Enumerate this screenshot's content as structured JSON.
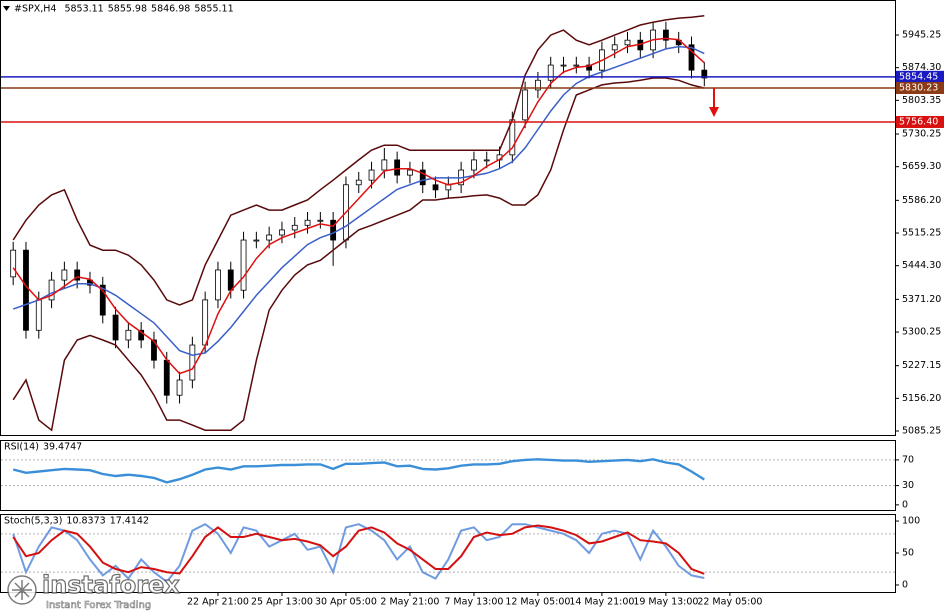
{
  "chart_data": [
    {
      "type": "candlestick",
      "title": "#SPX,H4",
      "header_values": [
        5853.11,
        5855.98,
        5846.98,
        5855.11
      ],
      "xlim": [
        -1.03,
        68.9
      ],
      "ylim": [
        5076.6,
        6021.3
      ],
      "yticks": [
        5945.25,
        {
          "value": 5874.3,
          "label": "5874.30"
        },
        5803.35,
        5730.25,
        {
          "value": 5659.3,
          "label": "5659.30"
        },
        {
          "value": 5586.2,
          "label": "5586.20"
        },
        5515.25,
        {
          "value": 5444.3,
          "label": "5444.30"
        },
        {
          "value": 5371.2,
          "label": "5371.20"
        },
        5300.25,
        5227.15,
        {
          "value": 5156.2,
          "label": "5156.20"
        },
        5085.25
      ],
      "open": [
        5420,
        5478,
        5304,
        5370,
        5413,
        5435,
        5413,
        5402,
        5337,
        5283,
        5304,
        5283,
        5239,
        5163,
        5196,
        5272,
        5370,
        5435,
        5391,
        5500,
        5500,
        5511,
        5522,
        5532,
        5543,
        5543,
        5500,
        5620,
        5630,
        5652,
        5674,
        5641,
        5652,
        5620,
        5609,
        5620,
        5652,
        5674,
        5674,
        5685,
        5761,
        5826,
        5847,
        5880,
        5880,
        5880,
        5869,
        5913,
        5924,
        5934,
        5913,
        5956,
        5934,
        5924,
        5869
      ],
      "high": [
        5496,
        5496,
        5388,
        5431,
        5453,
        5453,
        5431,
        5420,
        5355,
        5322,
        5322,
        5301,
        5257,
        5214,
        5290,
        5388,
        5453,
        5453,
        5518,
        5518,
        5529,
        5540,
        5550,
        5561,
        5561,
        5561,
        5638,
        5648,
        5670,
        5700,
        5692,
        5670,
        5670,
        5638,
        5638,
        5670,
        5692,
        5692,
        5703,
        5779,
        5844,
        5865,
        5898,
        5898,
        5898,
        5898,
        5931,
        5942,
        5952,
        5952,
        5974,
        5974,
        5952,
        5942,
        5887
      ],
      "low": [
        5402,
        5286,
        5286,
        5352,
        5395,
        5395,
        5384,
        5319,
        5265,
        5265,
        5265,
        5221,
        5145,
        5145,
        5178,
        5254,
        5352,
        5373,
        5373,
        5482,
        5482,
        5493,
        5504,
        5514,
        5525,
        5444,
        5482,
        5602,
        5612,
        5634,
        5623,
        5623,
        5602,
        5591,
        5591,
        5602,
        5634,
        5656,
        5656,
        5667,
        5743,
        5808,
        5829,
        5862,
        5862,
        5851,
        5851,
        5895,
        5906,
        5895,
        5895,
        5916,
        5906,
        5851,
        5834
      ],
      "close": [
        5478,
        5304,
        5370,
        5413,
        5435,
        5413,
        5402,
        5337,
        5283,
        5304,
        5283,
        5239,
        5163,
        5196,
        5272,
        5370,
        5435,
        5391,
        5500,
        5500,
        5511,
        5522,
        5532,
        5543,
        5543,
        5500,
        5620,
        5630,
        5652,
        5674,
        5641,
        5652,
        5620,
        5609,
        5620,
        5652,
        5674,
        5674,
        5685,
        5761,
        5826,
        5847,
        5880,
        5880,
        5880,
        5869,
        5913,
        5924,
        5934,
        5913,
        5956,
        5934,
        5924,
        5869,
        5852
      ],
      "lines": [
        {
          "color": "#5a0a0a",
          "values": [
            5500,
            5543,
            5576,
            5598,
            5609,
            5543,
            5489,
            5478,
            5478,
            5467,
            5446,
            5413,
            5370,
            5359,
            5370,
            5446,
            5500,
            5554,
            5565,
            5576,
            5565,
            5565,
            5576,
            5587,
            5609,
            5630,
            5652,
            5674,
            5695,
            5706,
            5706,
            5695,
            5695,
            5695,
            5695,
            5695,
            5695,
            5695,
            5695,
            5761,
            5858,
            5913,
            5945,
            5956,
            5934,
            5924,
            5934,
            5945,
            5956,
            5967,
            5973,
            5978,
            5982,
            5984,
            5987
          ]
        },
        {
          "color": "#5a0a0a",
          "values": [
            5153,
            5196,
            5109,
            5087,
            5239,
            5283,
            5293,
            5283,
            5272,
            5239,
            5207,
            5163,
            5109,
            5109,
            5098,
            5087,
            5087,
            5087,
            5109,
            5239,
            5348,
            5391,
            5424,
            5446,
            5456,
            5478,
            5500,
            5522,
            5532,
            5543,
            5554,
            5565,
            5587,
            5587,
            5591,
            5593,
            5596,
            5598,
            5591,
            5576,
            5576,
            5598,
            5652,
            5739,
            5815,
            5826,
            5837,
            5841,
            5843,
            5847,
            5852,
            5852,
            5847,
            5837,
            5830
          ]
        },
        {
          "color": "#3a5fc8",
          "values": [
            5350,
            5360,
            5370,
            5385,
            5395,
            5405,
            5405,
            5395,
            5380,
            5360,
            5340,
            5320,
            5290,
            5260,
            5250,
            5255,
            5280,
            5310,
            5345,
            5380,
            5410,
            5440,
            5465,
            5490,
            5505,
            5515,
            5530,
            5550,
            5570,
            5590,
            5610,
            5620,
            5630,
            5635,
            5635,
            5635,
            5640,
            5645,
            5655,
            5670,
            5700,
            5740,
            5780,
            5815,
            5840,
            5855,
            5865,
            5875,
            5885,
            5895,
            5905,
            5915,
            5920,
            5918,
            5905
          ]
        },
        {
          "color": "#e01010",
          "values": [
            5440,
            5400,
            5370,
            5380,
            5400,
            5420,
            5415,
            5390,
            5350,
            5320,
            5300,
            5280,
            5240,
            5210,
            5220,
            5270,
            5340,
            5390,
            5420,
            5460,
            5490,
            5505,
            5515,
            5525,
            5535,
            5530,
            5560,
            5590,
            5620,
            5650,
            5655,
            5655,
            5645,
            5630,
            5620,
            5625,
            5640,
            5660,
            5675,
            5700,
            5750,
            5800,
            5840,
            5865,
            5875,
            5878,
            5890,
            5905,
            5920,
            5925,
            5935,
            5938,
            5935,
            5910,
            5885
          ]
        }
      ],
      "levels": [
        {
          "value": 5854.45,
          "color": "#1a1ac0"
        },
        {
          "value": 5830.23,
          "color": "#8a3a14"
        },
        {
          "value": 5756.4,
          "label": "5756.40",
          "color": "#d81010"
        }
      ]
    },
    {
      "type": "line",
      "title": "RSI(14)",
      "xlim": [
        -1.03,
        68.9
      ],
      "ylim": [
        -8,
        101
      ],
      "yticks": [
        0,
        30,
        70
      ],
      "levels": [
        30,
        70
      ],
      "series": [
        {
          "color": "#3a8fd8",
          "values": [
            55,
            50,
            52,
            54,
            56,
            55,
            54,
            48,
            45,
            47,
            45,
            42,
            35,
            40,
            47,
            55,
            58,
            55,
            60,
            60,
            61,
            62,
            62,
            63,
            63,
            56,
            64,
            64,
            65,
            66,
            60,
            61,
            56,
            55,
            57,
            61,
            63,
            63,
            64,
            68,
            70,
            71,
            70,
            69,
            69,
            67,
            68,
            69,
            70,
            68,
            71,
            66,
            63,
            52,
            39.4747
          ]
        }
      ]
    },
    {
      "type": "line",
      "title": "Stoch(5,3,3)",
      "xlim": [
        -1.03,
        68.9
      ],
      "ylim": [
        -11,
        111
      ],
      "yticks": [
        0,
        50,
        100
      ],
      "levels": [
        20,
        80
      ],
      "xticks": [
        {
          "value": 16,
          "label": "22 Apr 21:00"
        },
        {
          "value": 21,
          "label": "25 Apr 13:00"
        },
        {
          "value": 26,
          "label": "30 Apr 05:00"
        },
        {
          "value": 31,
          "label": "2 May 21:00"
        },
        {
          "value": 36,
          "label": "7 May 13:00"
        },
        {
          "value": 41,
          "label": "12 May 05:00"
        },
        {
          "value": 46,
          "label": "14 May 21:00"
        },
        {
          "value": 51,
          "label": "19 May 13:00"
        },
        {
          "value": 56,
          "label": "22 May 05:00"
        }
      ],
      "series": [
        {
          "color": "#6f9be0",
          "values": [
            80,
            20,
            60,
            90,
            85,
            70,
            40,
            15,
            30,
            10,
            40,
            20,
            5,
            30,
            85,
            95,
            80,
            50,
            90,
            85,
            60,
            70,
            80,
            55,
            60,
            20,
            90,
            95,
            85,
            70,
            40,
            60,
            20,
            10,
            40,
            85,
            90,
            70,
            75,
            95,
            95,
            90,
            85,
            80,
            70,
            50,
            80,
            85,
            80,
            40,
            85,
            60,
            30,
            15,
            10.8373
          ]
        },
        {
          "color": "#d41010",
          "values": [
            75,
            45,
            50,
            70,
            85,
            80,
            60,
            35,
            25,
            20,
            28,
            25,
            20,
            18,
            45,
            75,
            90,
            75,
            75,
            80,
            75,
            70,
            72,
            68,
            62,
            45,
            60,
            85,
            90,
            82,
            65,
            55,
            40,
            25,
            25,
            45,
            75,
            82,
            78,
            80,
            90,
            93,
            90,
            85,
            78,
            65,
            68,
            75,
            82,
            70,
            68,
            65,
            50,
            25,
            17.4142
          ]
        }
      ]
    }
  ],
  "watermark": {
    "brand": "instaforex",
    "tagline": "Instant Forex Trading"
  }
}
